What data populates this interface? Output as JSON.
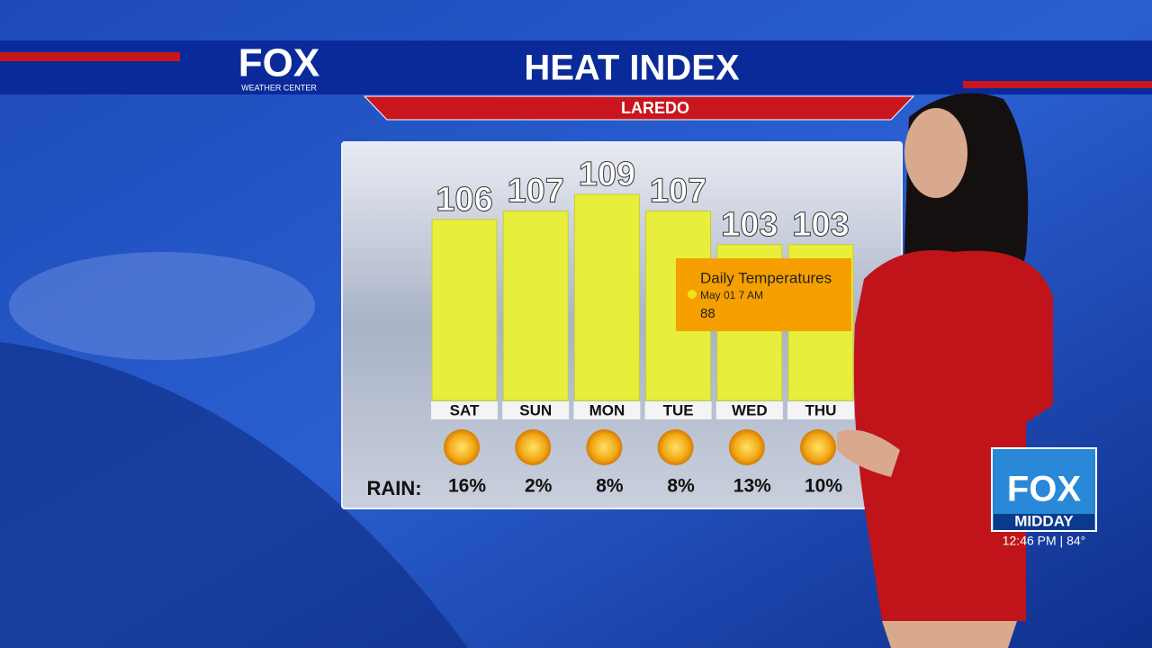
{
  "brand": {
    "logo": "FOX",
    "logo_sub": "WEATHER CENTER"
  },
  "chart_data": {
    "type": "bar",
    "title": "HEAT INDEX",
    "subtitle": "LAREDO",
    "categories": [
      "SAT",
      "SUN",
      "MON",
      "TUE",
      "WED",
      "THU"
    ],
    "values": [
      106,
      107,
      109,
      107,
      103,
      103
    ],
    "color": "#e8ee3c",
    "rain": {
      "label": "RAIN:",
      "values": [
        16,
        2,
        8,
        8,
        13,
        10
      ],
      "value_labels": [
        "16%",
        "2%",
        "8%",
        "8%",
        "13%",
        "10%"
      ]
    }
  },
  "tooltip": {
    "title": "Daily Temperatures",
    "time": "May 01 7 AM",
    "value": 88
  },
  "bug": {
    "logo": "FOX",
    "show": "MIDDAY",
    "status": "12:46 PM | 84°"
  }
}
